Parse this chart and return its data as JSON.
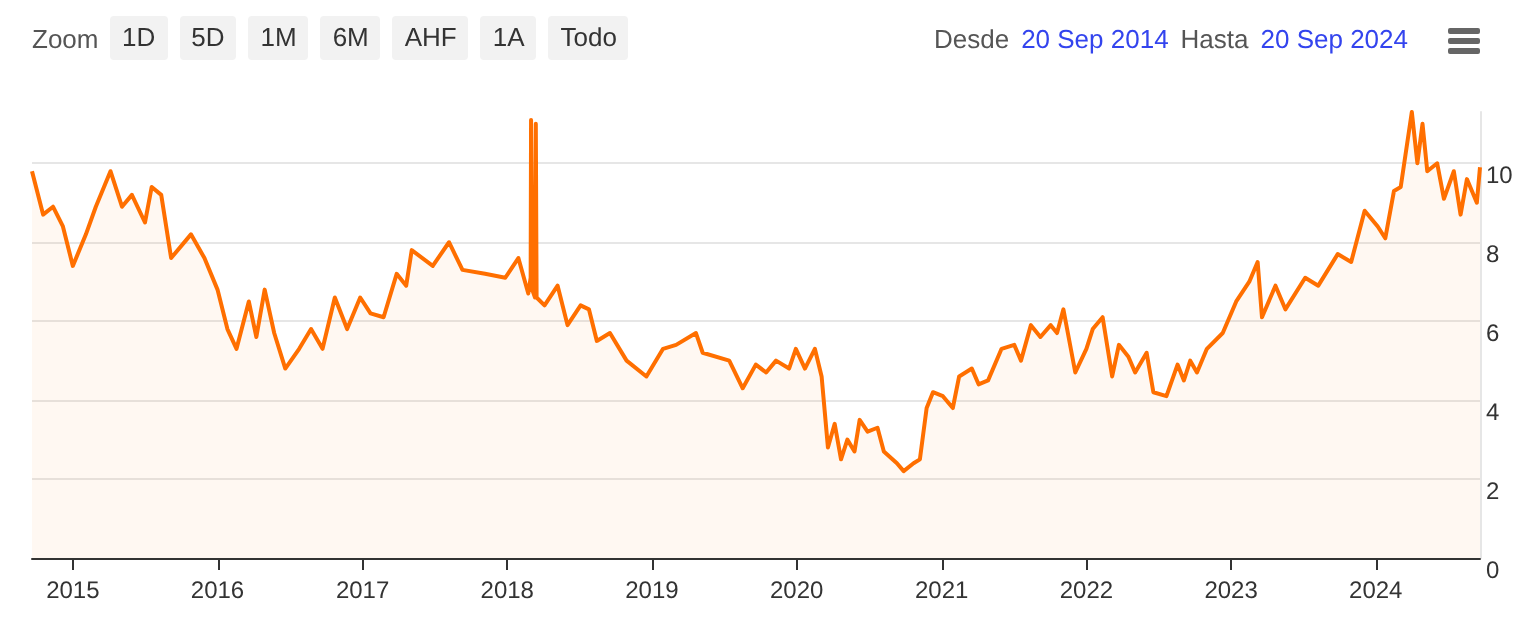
{
  "chart_data": {
    "type": "area",
    "color": "#ff6f00",
    "grid": "y",
    "annotations": [
      "Zoom",
      "1D",
      "5D",
      "1M",
      "6M",
      "AHF",
      "1A",
      "Todo",
      "Desde",
      "20 Sep 2014",
      "Hasta",
      "20 Sep 2024"
    ],
    "xlim": [
      "2014-09-20",
      "2024-09-20"
    ],
    "xticks": [
      "2015",
      "2016",
      "2017",
      "2018",
      "2019",
      "2020",
      "2021",
      "2022",
      "2023",
      "2024"
    ],
    "ylim": [
      0,
      11.3
    ],
    "yticks": [
      0,
      2,
      4,
      6,
      8,
      10
    ],
    "x": [
      "2014-09-20",
      "2014-10-18",
      "2014-11-12",
      "2014-12-07",
      "2015-01-01",
      "2015-02-03",
      "2015-02-28",
      "2015-04-06",
      "2015-05-05",
      "2015-05-30",
      "2015-07-02",
      "2015-07-19",
      "2015-08-12",
      "2015-09-06",
      "2015-10-26",
      "2015-11-29",
      "2016-01-01",
      "2016-01-26",
      "2016-02-18",
      "2016-03-20",
      "2016-04-08",
      "2016-04-29",
      "2016-05-23",
      "2016-06-20",
      "2016-07-25",
      "2016-08-24",
      "2016-09-22",
      "2016-10-23",
      "2016-11-23",
      "2016-12-26",
      "2017-01-21",
      "2017-02-23",
      "2017-03-28",
      "2017-04-21",
      "2017-05-05",
      "2017-06-27",
      "2017-08-07",
      "2017-09-10",
      "2017-11-06",
      "2017-12-27",
      "2018-01-29",
      "2018-02-23",
      "2018-03-01",
      "2018-03-02",
      "2018-03-05",
      "2018-03-12",
      "2018-03-14",
      "2018-03-16",
      "2018-04-05",
      "2018-05-08",
      "2018-06-02",
      "2018-07-05",
      "2018-07-26",
      "2018-08-15",
      "2018-09-17",
      "2018-10-29",
      "2018-12-18",
      "2019-01-29",
      "2019-03-03",
      "2019-04-22",
      "2019-05-09",
      "2019-07-15",
      "2019-08-18",
      "2019-09-20",
      "2019-10-16",
      "2019-11-10",
      "2019-12-13",
      "2019-12-30",
      "2020-01-22",
      "2020-02-16",
      "2020-03-04",
      "2020-03-20",
      "2020-04-06",
      "2020-04-22",
      "2020-05-08",
      "2020-05-26",
      "2020-06-08",
      "2020-06-28",
      "2020-07-23",
      "2020-08-08",
      "2020-09-10",
      "2020-09-27",
      "2020-10-22",
      "2020-11-07",
      "2020-11-24",
      "2020-12-10",
      "2021-01-04",
      "2021-01-29",
      "2021-02-14",
      "2021-03-18",
      "2021-04-04",
      "2021-04-28",
      "2021-06-01",
      "2021-07-03",
      "2021-07-20",
      "2021-08-14",
      "2021-09-07",
      "2021-10-03",
      "2021-10-19",
      "2021-11-04",
      "2021-12-04",
      "2022-01-01",
      "2022-01-17",
      "2022-02-11",
      "2022-03-07",
      "2022-03-24",
      "2022-04-17",
      "2022-05-04",
      "2022-06-02",
      "2022-06-19",
      "2022-07-22",
      "2022-08-19",
      "2022-09-04",
      "2022-09-20",
      "2022-10-07",
      "2022-11-01",
      "2022-12-11",
      "2023-01-14",
      "2023-02-16",
      "2023-03-09",
      "2023-03-20",
      "2023-04-23",
      "2023-05-18",
      "2023-07-07",
      "2023-08-09",
      "2023-09-27",
      "2023-10-31",
      "2023-12-04",
      "2024-01-06",
      "2024-01-25",
      "2024-02-16",
      "2024-03-04",
      "2024-04-01",
      "2024-04-15",
      "2024-04-28",
      "2024-05-10",
      "2024-06-04",
      "2024-06-21",
      "2024-07-16",
      "2024-08-02",
      "2024-08-18",
      "2024-09-12",
      "2024-09-20"
    ],
    "values": [
      9.8,
      8.7,
      8.9,
      8.4,
      7.4,
      8.2,
      8.9,
      9.8,
      8.9,
      9.2,
      8.5,
      9.4,
      9.2,
      7.6,
      8.2,
      7.6,
      6.8,
      5.8,
      5.3,
      6.5,
      5.6,
      6.8,
      5.7,
      4.8,
      5.3,
      5.8,
      5.3,
      6.6,
      5.8,
      6.6,
      6.2,
      6.1,
      7.2,
      6.9,
      7.8,
      7.4,
      8.0,
      7.3,
      7.2,
      7.1,
      7.6,
      6.7,
      7.1,
      11.1,
      6.8,
      6.6,
      11.0,
      6.6,
      6.4,
      6.9,
      5.9,
      6.4,
      6.3,
      5.5,
      5.7,
      5.0,
      4.6,
      5.3,
      5.4,
      5.7,
      5.2,
      5.0,
      4.3,
      4.9,
      4.7,
      5.0,
      4.8,
      5.3,
      4.8,
      5.3,
      4.6,
      2.8,
      3.4,
      2.5,
      3.0,
      2.7,
      3.5,
      3.2,
      3.3,
      2.7,
      2.4,
      2.2,
      2.4,
      2.5,
      3.8,
      4.2,
      4.1,
      3.8,
      4.6,
      4.8,
      4.4,
      4.5,
      5.3,
      5.4,
      5.0,
      5.9,
      5.6,
      5.9,
      5.7,
      6.3,
      4.7,
      5.3,
      5.8,
      6.1,
      4.6,
      5.4,
      5.1,
      4.7,
      5.2,
      4.2,
      4.1,
      4.9,
      4.5,
      5.0,
      4.7,
      5.3,
      5.7,
      6.5,
      7.0,
      7.5,
      6.1,
      6.9,
      6.3,
      7.1,
      6.9,
      7.7,
      7.5,
      8.8,
      8.4,
      8.1,
      9.3,
      9.4,
      11.3,
      10.0,
      11.0,
      9.8,
      10.0,
      9.1,
      9.8,
      8.7,
      9.6,
      9.0,
      9.9
    ]
  }
}
